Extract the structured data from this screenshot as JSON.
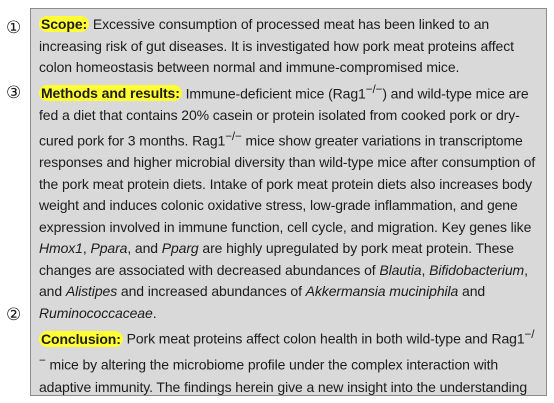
{
  "markers": {
    "scope": "①",
    "methods": "③",
    "conclusion": "②"
  },
  "scope": {
    "heading": "Scope:",
    "text": " Excessive consumption of processed meat has been linked to an increasing risk of gut diseases. It is investigated how pork meat proteins affect colon homeostasis between normal and immune-compromised mice."
  },
  "methods": {
    "heading": "Methods and results:",
    "t1": " Immune-deficient mice (Rag1",
    "sup1": "−/−",
    "t2": ") and wild-type mice are fed a diet that contains 20% casein or protein isolated from cooked pork or dry-cured pork for 3 months. Rag1",
    "sup2": "−/−",
    "t3": " mice show greater variations in transcriptome responses and higher microbial diversity than wild-type mice after consumption of the pork meat protein diets. Intake of pork meat protein diets also increases body weight and induces colonic oxidative stress, low-grade inflammation, and gene expression involved in immune function, cell cycle, and migration. Key genes like ",
    "gene1": "Hmox1",
    "t4": ", ",
    "gene2": "Ppara",
    "t5": ", and ",
    "gene3": "Pparg",
    "t6": " are highly upregulated by pork meat protein. These changes are associated with decreased abundances of ",
    "taxon1": "Blautia",
    "t7": ", ",
    "taxon2": "Bifidobacterium",
    "t8": ", and ",
    "taxon3": "Alistipes",
    "t9": " and increased abundances of ",
    "taxon4": "Akkermansia muciniphila",
    "t10": " and ",
    "taxon5": "Ruminococcaceae",
    "t11": "."
  },
  "conclusion": {
    "heading": "Conclusion:",
    "t1": " Pork meat proteins affect colon health in both wild-type and Rag1",
    "sup1": "−/−",
    "t2": " mice by altering the microbiome profile under the complex interaction with adaptive immunity. The findings herein give a new insight into the understanding of meat intake, immunity, and gut health."
  },
  "colors": {
    "highlight": "#ffff33",
    "box_background": "#d9d9d9",
    "box_border": "#8c8c8c"
  }
}
